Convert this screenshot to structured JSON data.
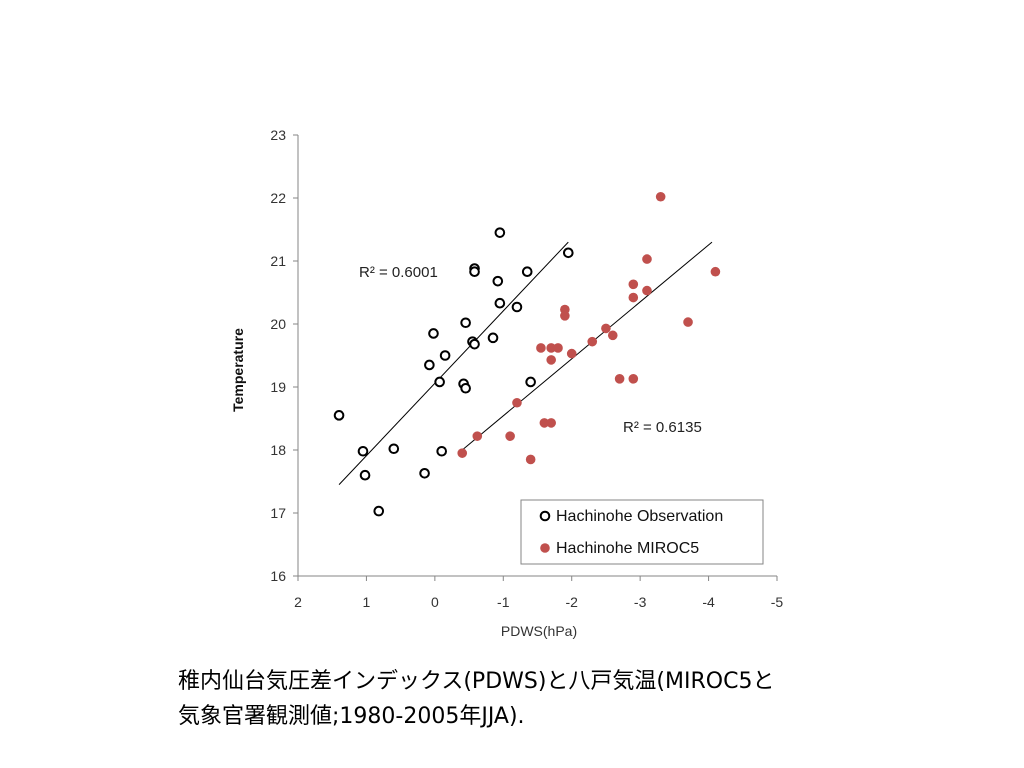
{
  "chart_data": {
    "type": "scatter",
    "title": "",
    "xlabel": "PDWS(hPa)",
    "ylabel": "Temperature",
    "xlim": [
      2,
      -5
    ],
    "ylim": [
      16,
      23
    ],
    "x_reversed": true,
    "x_ticks": [
      2,
      1,
      0,
      -1,
      -2,
      -3,
      -4,
      -5
    ],
    "y_ticks": [
      16,
      17,
      18,
      19,
      20,
      21,
      22,
      23
    ],
    "grid": false,
    "legend_position": "bottom-right",
    "series": [
      {
        "name": "Hachinohe Observation",
        "marker": "hollow-circle",
        "color": "#000000",
        "r2_label": "R² = 0.6001",
        "trendline": {
          "x": [
            1.4,
            -1.95
          ],
          "y": [
            17.45,
            21.3
          ]
        },
        "points": [
          {
            "x": 1.4,
            "y": 18.55
          },
          {
            "x": 1.05,
            "y": 17.98
          },
          {
            "x": 1.02,
            "y": 17.6
          },
          {
            "x": 0.82,
            "y": 17.03
          },
          {
            "x": 0.6,
            "y": 18.02
          },
          {
            "x": 0.15,
            "y": 17.63
          },
          {
            "x": -0.1,
            "y": 17.98
          },
          {
            "x": 0.08,
            "y": 19.35
          },
          {
            "x": 0.02,
            "y": 19.85
          },
          {
            "x": -0.07,
            "y": 19.08
          },
          {
            "x": -0.15,
            "y": 19.5
          },
          {
            "x": -0.42,
            "y": 19.05
          },
          {
            "x": -0.45,
            "y": 18.98
          },
          {
            "x": -0.45,
            "y": 20.02
          },
          {
            "x": -0.55,
            "y": 19.72
          },
          {
            "x": -0.58,
            "y": 19.68
          },
          {
            "x": -0.58,
            "y": 20.88
          },
          {
            "x": -0.58,
            "y": 20.83
          },
          {
            "x": -0.85,
            "y": 19.78
          },
          {
            "x": -0.92,
            "y": 20.68
          },
          {
            "x": -0.95,
            "y": 21.45
          },
          {
            "x": -0.95,
            "y": 20.33
          },
          {
            "x": -1.2,
            "y": 20.27
          },
          {
            "x": -1.35,
            "y": 20.83
          },
          {
            "x": -1.4,
            "y": 19.08
          },
          {
            "x": -1.95,
            "y": 21.13
          }
        ]
      },
      {
        "name": "Hachinohe MIROC5",
        "marker": "filled-circle",
        "color": "#c0504d",
        "r2_label": "R² = 0.6135",
        "trendline": {
          "x": [
            -0.4,
            -4.05
          ],
          "y": [
            18.0,
            21.3
          ]
        },
        "points": [
          {
            "x": -0.4,
            "y": 17.95
          },
          {
            "x": -0.62,
            "y": 18.22
          },
          {
            "x": -1.1,
            "y": 18.22
          },
          {
            "x": -1.2,
            "y": 18.75
          },
          {
            "x": -1.4,
            "y": 17.85
          },
          {
            "x": -1.55,
            "y": 19.62
          },
          {
            "x": -1.6,
            "y": 18.43
          },
          {
            "x": -1.7,
            "y": 18.43
          },
          {
            "x": -1.7,
            "y": 19.43
          },
          {
            "x": -1.7,
            "y": 19.62
          },
          {
            "x": -1.8,
            "y": 19.62
          },
          {
            "x": -1.9,
            "y": 20.23
          },
          {
            "x": -1.9,
            "y": 20.13
          },
          {
            "x": -2.0,
            "y": 19.53
          },
          {
            "x": -2.3,
            "y": 19.72
          },
          {
            "x": -2.5,
            "y": 19.93
          },
          {
            "x": -2.6,
            "y": 19.82
          },
          {
            "x": -2.7,
            "y": 19.13
          },
          {
            "x": -2.9,
            "y": 20.63
          },
          {
            "x": -2.9,
            "y": 20.42
          },
          {
            "x": -2.9,
            "y": 19.13
          },
          {
            "x": -3.1,
            "y": 21.03
          },
          {
            "x": -3.1,
            "y": 20.53
          },
          {
            "x": -3.3,
            "y": 22.02
          },
          {
            "x": -3.7,
            "y": 20.03
          },
          {
            "x": -4.1,
            "y": 20.83
          }
        ]
      }
    ]
  },
  "caption": {
    "line1": "稚内仙台気圧差インデックス(PDWS)と八戸気温(MIROC5と",
    "line2": "気象官署観測値;1980-2005年JJA)."
  },
  "colors": {
    "axis": "#868686",
    "trendline": "#000000",
    "legend_border": "#868686"
  }
}
